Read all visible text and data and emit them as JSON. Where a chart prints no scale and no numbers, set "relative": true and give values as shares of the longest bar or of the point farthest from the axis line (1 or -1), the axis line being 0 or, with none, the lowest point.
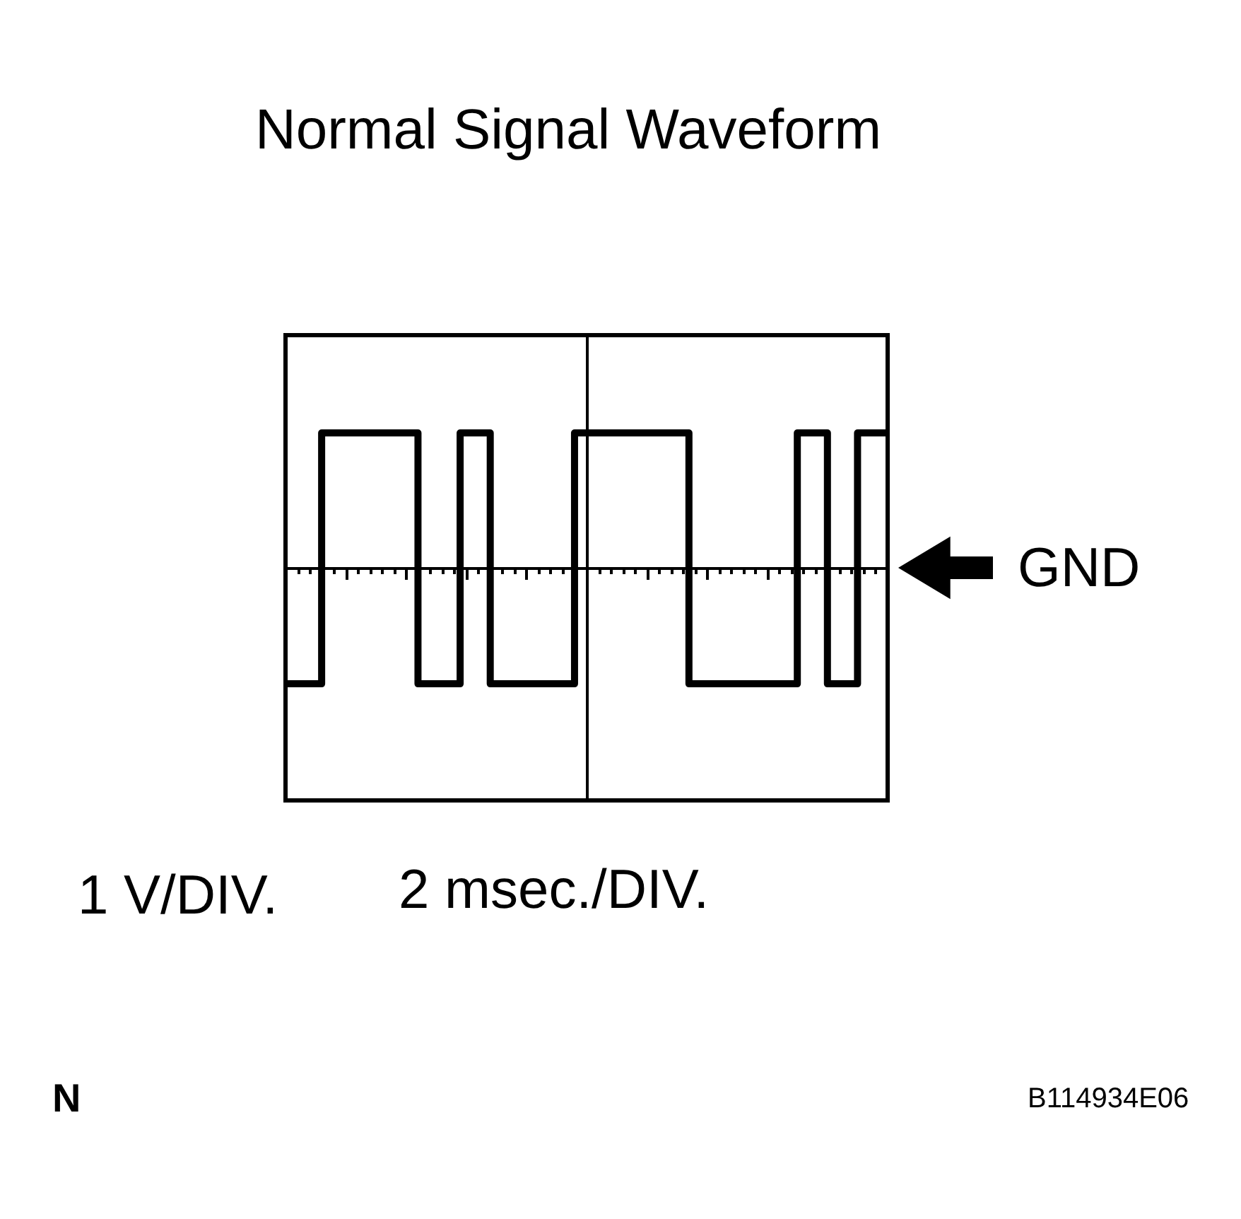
{
  "chart_data": {
    "type": "step",
    "title": "Normal Signal Waveform",
    "categories": [
      null,
      null,
      null,
      null,
      null,
      null,
      null,
      null,
      null,
      null,
      null,
      null,
      null,
      null,
      null,
      null,
      null,
      null,
      null,
      null,
      null,
      null,
      null,
      null,
      null,
      null,
      null,
      null,
      null,
      null,
      null,
      null,
      null,
      null,
      null,
      null,
      null,
      null,
      null,
      null,
      null,
      null,
      null,
      null,
      null,
      null,
      null,
      null,
      null,
      null,
      null,
      null,
      null,
      null,
      null,
      null,
      null,
      null,
      null,
      null,
      null,
      null,
      null,
      null,
      null,
      null,
      null,
      null,
      null,
      null,
      null,
      null,
      null,
      null,
      null,
      null,
      null,
      null,
      null,
      null,
      null,
      null,
      null,
      null,
      null,
      null,
      null,
      null,
      null,
      null,
      null,
      null,
      null,
      null,
      null,
      null,
      null,
      null,
      null,
      null,
      null
    ],
    "series": [
      {
        "color": "#000000",
        "values": [
          -0.86,
          -0.86,
          -0.86,
          -0.86,
          -0.86,
          -0.86,
          1,
          1,
          1,
          1,
          1,
          1,
          1,
          1,
          1,
          1,
          1,
          1,
          1,
          1,
          1,
          1,
          -0.86,
          -0.86,
          -0.86,
          -0.86,
          -0.86,
          -0.86,
          -0.86,
          1,
          1,
          1,
          1,
          1,
          -0.86,
          -0.86,
          -0.86,
          -0.86,
          -0.86,
          -0.86,
          -0.86,
          -0.86,
          -0.86,
          -0.86,
          -0.86,
          -0.86,
          -0.86,
          -0.86,
          1,
          1,
          1,
          1,
          1,
          1,
          1,
          1,
          1,
          1,
          1,
          1,
          1,
          1,
          1,
          1,
          1,
          1,
          1,
          -0.86,
          -0.86,
          -0.86,
          -0.86,
          -0.86,
          -0.86,
          -0.86,
          -0.86,
          -0.86,
          -0.86,
          -0.86,
          -0.86,
          -0.86,
          -0.86,
          -0.86,
          -0.86,
          -0.86,
          -0.86,
          1,
          1,
          1,
          1,
          1,
          -0.86,
          -0.86,
          -0.86,
          -0.86,
          -0.86,
          1,
          1,
          1,
          1,
          1,
          1
        ]
      }
    ],
    "relative": true,
    "line_style": "solid",
    "annotations": [
      "1 V/DIV.",
      "2 msec./DIV.",
      "GND",
      "N",
      "B114934E06"
    ]
  }
}
